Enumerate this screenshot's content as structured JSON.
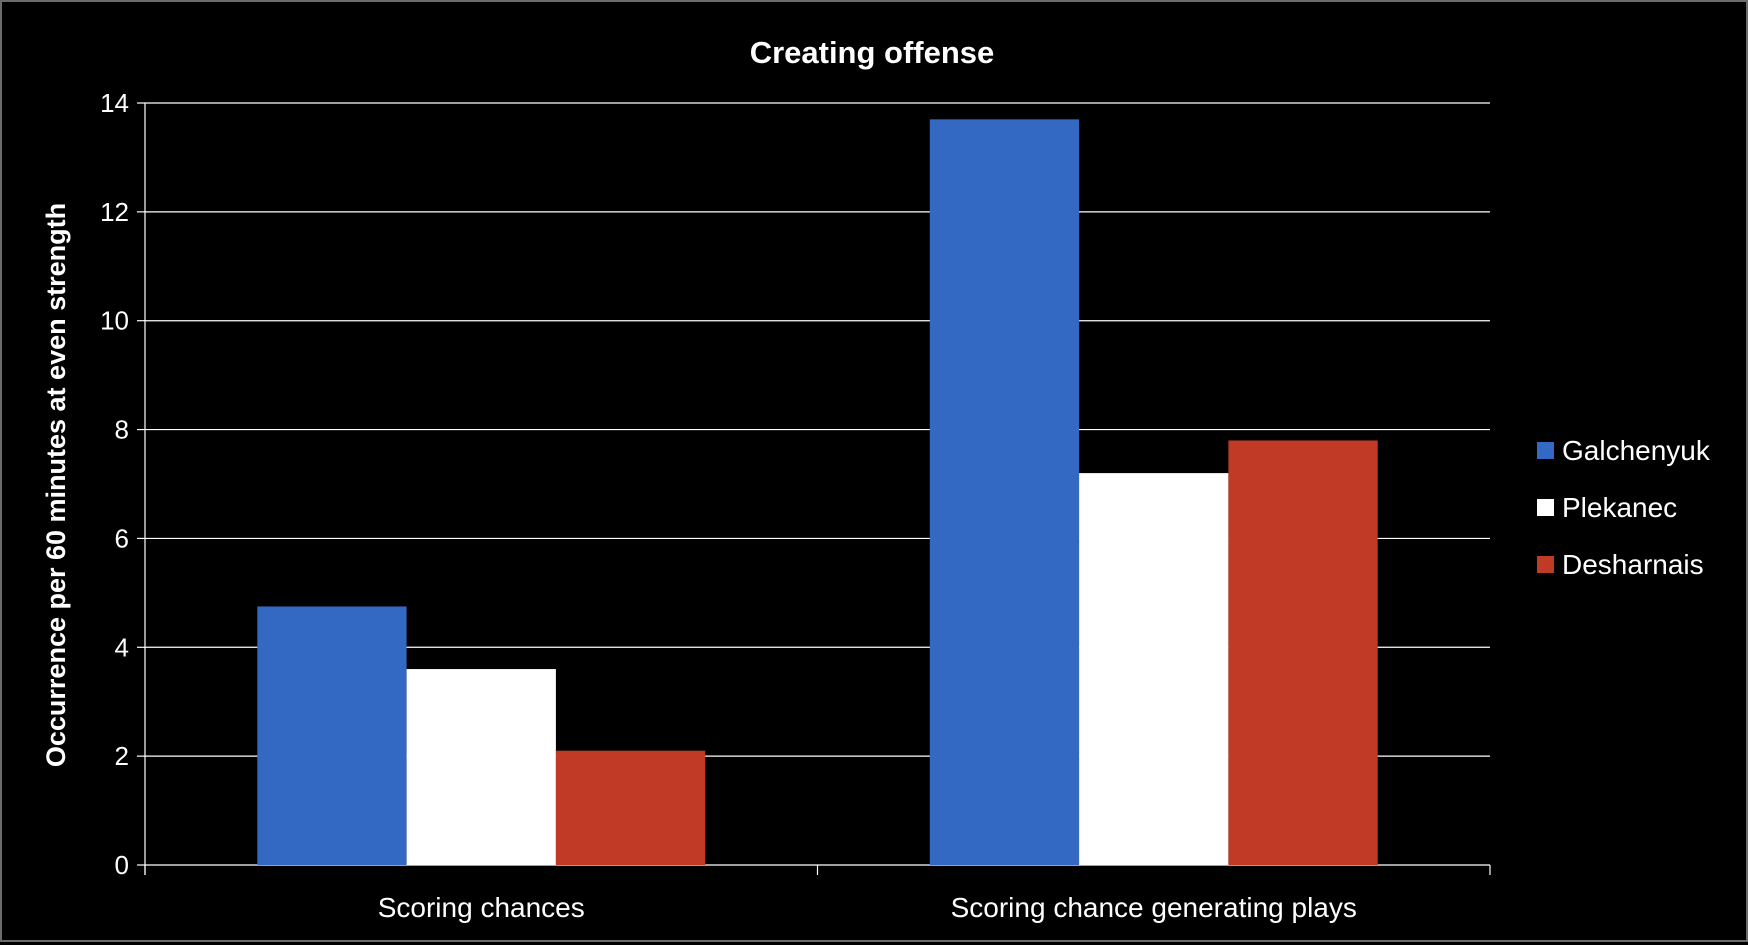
{
  "chart_data": {
    "type": "bar",
    "title": "Creating offense",
    "xlabel": "",
    "ylabel": "Occurrence per 60 minutes at even strength",
    "ylim": [
      0,
      14
    ],
    "yticks": [
      0,
      2,
      4,
      6,
      8,
      10,
      12,
      14
    ],
    "categories": [
      "Scoring chances",
      "Scoring chance generating plays"
    ],
    "series": [
      {
        "name": "Galchenyuk",
        "values": [
          4.75,
          13.7
        ],
        "color": "#3369c3"
      },
      {
        "name": "Plekanec",
        "values": [
          3.6,
          7.2
        ],
        "color": "#ffffff"
      },
      {
        "name": "Desharnais",
        "values": [
          2.1,
          7.8
        ],
        "color": "#c03a26"
      }
    ],
    "grid": true,
    "legend_position": "right",
    "background_color": "#000000",
    "gridline_color": "#ffffff"
  }
}
